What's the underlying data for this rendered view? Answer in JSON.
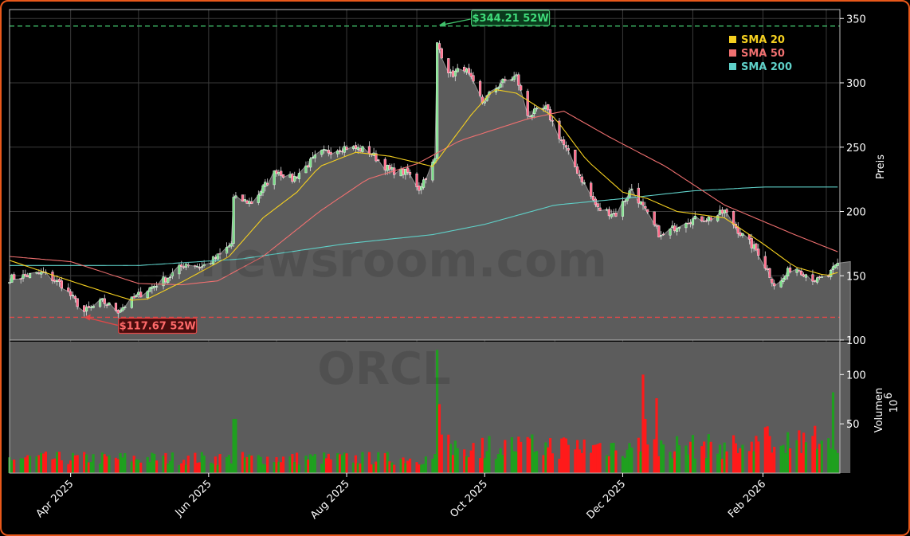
{
  "chart_data": {
    "type": "candlestick",
    "ticker_watermark": "ORCL",
    "site_watermark": "sdf-newsroom.com",
    "price_axis": {
      "label": "Preis",
      "ylim": [
        100,
        357
      ],
      "ticks": [
        100,
        150,
        200,
        250,
        300,
        350
      ]
    },
    "volume_axis": {
      "label": "Volumen",
      "multiplier": "10",
      "multiplier_exp": "6",
      "ylim": [
        0,
        135
      ],
      "ticks": [
        50,
        100
      ]
    },
    "x_axis": {
      "range": [
        "2025-03-05",
        "2026-03-07"
      ],
      "ticks": [
        {
          "date": "2025-04-01",
          "label": "Apr 2025"
        },
        {
          "date": "2025-06-01",
          "label": "Jun 2025"
        },
        {
          "date": "2025-08-01",
          "label": "Aug 2025"
        },
        {
          "date": "2025-10-01",
          "label": "Oct 2025"
        },
        {
          "date": "2025-12-01",
          "label": "Dec 2025"
        },
        {
          "date": "2026-02-01",
          "label": "Feb 2026"
        }
      ]
    },
    "high_52w": {
      "value": 344.21,
      "date": "2025-09-10",
      "label": "$344.21 52W"
    },
    "low_52w": {
      "value": 117.67,
      "date": "2025-04-07",
      "label": "$117.67 52W"
    },
    "last_close": 161,
    "legend": [
      {
        "name": "SMA 20",
        "color": "#f5d020"
      },
      {
        "name": "SMA 50",
        "color": "#f07070"
      },
      {
        "name": "SMA 200",
        "color": "#5fd0c8"
      }
    ],
    "close_anchors": [
      [
        "2025-03-05",
        148
      ],
      [
        "2025-03-20",
        152
      ],
      [
        "2025-03-28",
        143
      ],
      [
        "2025-04-07",
        122
      ],
      [
        "2025-04-15",
        130
      ],
      [
        "2025-04-22",
        123
      ],
      [
        "2025-05-01",
        135
      ],
      [
        "2025-05-15",
        150
      ],
      [
        "2025-05-22",
        160
      ],
      [
        "2025-05-29",
        157
      ],
      [
        "2025-06-06",
        166
      ],
      [
        "2025-06-11",
        175
      ],
      [
        "2025-06-12",
        210
      ],
      [
        "2025-06-20",
        207
      ],
      [
        "2025-07-01",
        232
      ],
      [
        "2025-07-08",
        225
      ],
      [
        "2025-07-20",
        245
      ],
      [
        "2025-07-31",
        250
      ],
      [
        "2025-08-10",
        248
      ],
      [
        "2025-08-20",
        232
      ],
      [
        "2025-08-28",
        230
      ],
      [
        "2025-09-02",
        218
      ],
      [
        "2025-09-09",
        240
      ],
      [
        "2025-09-10",
        330
      ],
      [
        "2025-09-16",
        306
      ],
      [
        "2025-09-22",
        312
      ],
      [
        "2025-09-30",
        285
      ],
      [
        "2025-10-08",
        300
      ],
      [
        "2025-10-15",
        305
      ],
      [
        "2025-10-20",
        275
      ],
      [
        "2025-10-28",
        280
      ],
      [
        "2025-11-04",
        255
      ],
      [
        "2025-11-12",
        228
      ],
      [
        "2025-11-20",
        202
      ],
      [
        "2025-11-28",
        198
      ],
      [
        "2025-12-05",
        218
      ],
      [
        "2025-12-11",
        200
      ],
      [
        "2025-12-18",
        180
      ],
      [
        "2025-12-28",
        193
      ],
      [
        "2026-01-10",
        195
      ],
      [
        "2026-01-15",
        200
      ],
      [
        "2026-01-22",
        183
      ],
      [
        "2026-01-30",
        168
      ],
      [
        "2026-02-07",
        140
      ],
      [
        "2026-02-14",
        158
      ],
      [
        "2026-02-25",
        146
      ],
      [
        "2026-03-02",
        150
      ],
      [
        "2026-03-07",
        161
      ]
    ],
    "sma20_anchors": [
      [
        "2025-03-05",
        162
      ],
      [
        "2025-03-25",
        150
      ],
      [
        "2025-04-15",
        138
      ],
      [
        "2025-04-28",
        131
      ],
      [
        "2025-05-05",
        132
      ],
      [
        "2025-05-20",
        145
      ],
      [
        "2025-06-10",
        165
      ],
      [
        "2025-06-25",
        195
      ],
      [
        "2025-07-10",
        215
      ],
      [
        "2025-07-20",
        235
      ],
      [
        "2025-08-05",
        246
      ],
      [
        "2025-08-20",
        243
      ],
      [
        "2025-09-08",
        235
      ],
      [
        "2025-09-25",
        275
      ],
      [
        "2025-10-05",
        295
      ],
      [
        "2025-10-15",
        292
      ],
      [
        "2025-11-01",
        273
      ],
      [
        "2025-11-15",
        240
      ],
      [
        "2025-12-01",
        215
      ],
      [
        "2025-12-12",
        210
      ],
      [
        "2025-12-25",
        200
      ],
      [
        "2026-01-15",
        195
      ],
      [
        "2026-02-01",
        175
      ],
      [
        "2026-02-15",
        157
      ],
      [
        "2026-03-01",
        150
      ],
      [
        "2026-03-07",
        153
      ]
    ],
    "sma50_anchors": [
      [
        "2025-03-05",
        165
      ],
      [
        "2025-04-01",
        161
      ],
      [
        "2025-05-01",
        144
      ],
      [
        "2025-05-20",
        143
      ],
      [
        "2025-06-05",
        146
      ],
      [
        "2025-06-25",
        165
      ],
      [
        "2025-07-20",
        200
      ],
      [
        "2025-08-10",
        225
      ],
      [
        "2025-09-01",
        237
      ],
      [
        "2025-09-20",
        255
      ],
      [
        "2025-10-20",
        272
      ],
      [
        "2025-11-05",
        278
      ],
      [
        "2025-11-25",
        258
      ],
      [
        "2025-12-20",
        235
      ],
      [
        "2026-01-15",
        205
      ],
      [
        "2026-02-15",
        182
      ],
      [
        "2026-03-07",
        168
      ]
    ],
    "sma200_anchors": [
      [
        "2025-03-05",
        158
      ],
      [
        "2025-05-01",
        158
      ],
      [
        "2025-06-15",
        163
      ],
      [
        "2025-08-01",
        175
      ],
      [
        "2025-09-08",
        182
      ],
      [
        "2025-10-01",
        190
      ],
      [
        "2025-11-01",
        205
      ],
      [
        "2025-12-01",
        210
      ],
      [
        "2026-01-01",
        216
      ],
      [
        "2026-02-01",
        219
      ],
      [
        "2026-03-07",
        219
      ]
    ]
  }
}
